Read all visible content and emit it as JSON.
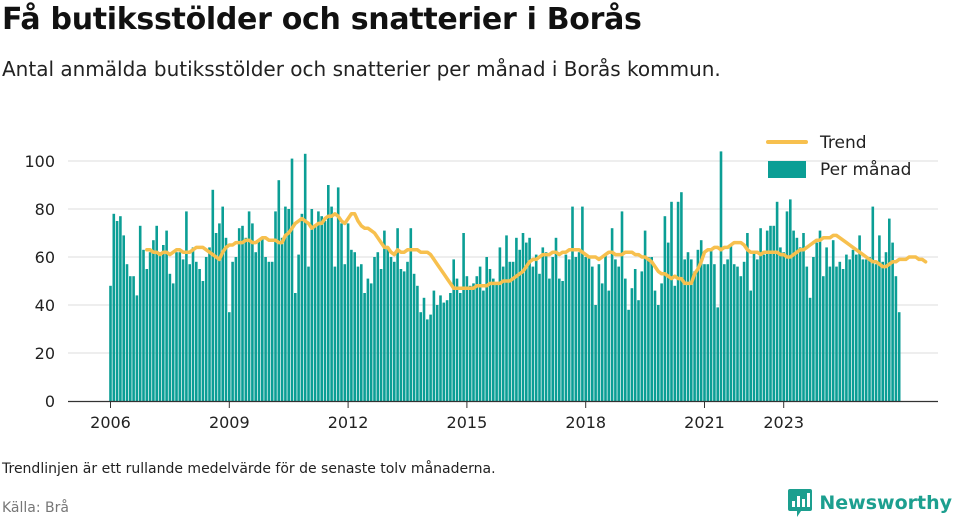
{
  "header": {
    "title": "Få butiksstölder och snatterier i Borås",
    "subtitle": "Antal anmälda butiksstölder och snatterier per månad i Borås kommun."
  },
  "footer": {
    "note": "Trendlinjen är ett rullande medelvärde för de senaste tolv månaderna.",
    "source": "Källa: Brå",
    "brand": "Newsworthy"
  },
  "colors": {
    "bar": "#0b9e95",
    "trend": "#f7c04e",
    "grid": "#dddddd",
    "brand": "#1c9f8f"
  },
  "chart_data": {
    "type": "bar",
    "start": "2006-01",
    "title": "",
    "xlabel": "",
    "ylabel": "",
    "ylim": [
      0,
      110
    ],
    "yticks": [
      0,
      20,
      40,
      60,
      80,
      100
    ],
    "xticks": [
      "2006",
      "2009",
      "2012",
      "2015",
      "2018",
      "2021",
      "2023"
    ],
    "grid": true,
    "legend_position": "top-right",
    "series": [
      {
        "name": "Per månad",
        "type": "bar",
        "values": [
          48,
          78,
          75,
          77,
          69,
          57,
          52,
          52,
          44,
          73,
          63,
          55,
          62,
          67,
          73,
          62,
          65,
          71,
          53,
          49,
          62,
          62,
          59,
          79,
          57,
          64,
          58,
          55,
          50,
          60,
          64,
          88,
          70,
          74,
          81,
          68,
          37,
          58,
          60,
          72,
          73,
          68,
          79,
          74,
          62,
          67,
          68,
          60,
          58,
          58,
          79,
          92,
          68,
          81,
          80,
          101,
          45,
          61,
          78,
          103,
          56,
          80,
          73,
          79,
          77,
          75,
          90,
          81,
          56,
          89,
          74,
          57,
          74,
          63,
          62,
          56,
          57,
          45,
          51,
          49,
          60,
          62,
          55,
          71,
          64,
          60,
          58,
          72,
          55,
          54,
          58,
          72,
          53,
          48,
          37,
          43,
          34,
          36,
          46,
          40,
          44,
          41,
          42,
          45,
          59,
          51,
          45,
          70,
          52,
          48,
          49,
          52,
          56,
          46,
          60,
          55,
          51,
          49,
          64,
          56,
          69,
          58,
          58,
          68,
          63,
          70,
          66,
          68,
          56,
          61,
          53,
          64,
          62,
          51,
          60,
          68,
          51,
          50,
          61,
          59,
          81,
          60,
          62,
          81,
          60,
          60,
          56,
          40,
          57,
          49,
          61,
          46,
          72,
          59,
          56,
          79,
          51,
          38,
          47,
          55,
          42,
          54,
          71,
          60,
          60,
          46,
          40,
          49,
          77,
          66,
          83,
          48,
          83,
          87,
          59,
          62,
          59,
          54,
          63,
          67,
          57,
          57,
          63,
          57,
          39,
          104,
          57,
          59,
          65,
          57,
          56,
          52,
          58,
          70,
          46,
          62,
          59,
          72,
          61,
          71,
          73,
          73,
          83,
          64,
          62,
          79,
          84,
          71,
          68,
          64,
          70,
          56,
          43,
          60,
          66,
          71,
          52,
          64,
          56,
          67,
          56,
          58,
          55,
          61,
          59,
          63,
          61,
          69,
          59,
          59,
          60,
          81,
          57,
          69,
          58,
          62,
          76,
          66,
          52,
          37
        ]
      },
      {
        "name": "Trend",
        "type": "line",
        "start_index": 11,
        "values": [
          63,
          63,
          62,
          62,
          61,
          62,
          62,
          61,
          62,
          63,
          63,
          62,
          62,
          62,
          63,
          64,
          64,
          64,
          63,
          62,
          61,
          60,
          59,
          62,
          64,
          65,
          65,
          66,
          66,
          66,
          67,
          67,
          66,
          66,
          67,
          68,
          68,
          67,
          67,
          67,
          66,
          66,
          69,
          70,
          72,
          74,
          75,
          76,
          75,
          74,
          72,
          73,
          74,
          74,
          76,
          77,
          77,
          78,
          77,
          75,
          74,
          76,
          78,
          78,
          75,
          73,
          72,
          72,
          71,
          70,
          68,
          66,
          64,
          64,
          62,
          61,
          63,
          62,
          62,
          63,
          63,
          63,
          63,
          62,
          62,
          62,
          61,
          59,
          57,
          55,
          53,
          51,
          49,
          47,
          47,
          47,
          47,
          47,
          47,
          47,
          48,
          48,
          48,
          48,
          49,
          49,
          49,
          49,
          50,
          50,
          50,
          51,
          52,
          53,
          54,
          56,
          58,
          59,
          59,
          60,
          61,
          61,
          61,
          62,
          62,
          61,
          62,
          62,
          63,
          63,
          63,
          63,
          62,
          61,
          60,
          60,
          60,
          59,
          60,
          61,
          62,
          62,
          61,
          61,
          61,
          62,
          62,
          62,
          61,
          61,
          60,
          60,
          59,
          58,
          56,
          54,
          53,
          53,
          52,
          51,
          52,
          51,
          51,
          49,
          49,
          49,
          53,
          55,
          58,
          62,
          63,
          63,
          64,
          64,
          63,
          64,
          64,
          65,
          66,
          66,
          66,
          65,
          63,
          62,
          62,
          62,
          61,
          62,
          62,
          62,
          62,
          62,
          61,
          61,
          60,
          60,
          61,
          62,
          63,
          63,
          64,
          65,
          66,
          67,
          67,
          68,
          68,
          68,
          69,
          69,
          68,
          67,
          66,
          65,
          64,
          63,
          62,
          61,
          60,
          59,
          58,
          58,
          57,
          56,
          56,
          57,
          58,
          58,
          59,
          59,
          59,
          60,
          60,
          60,
          59,
          59,
          58
        ]
      }
    ]
  }
}
